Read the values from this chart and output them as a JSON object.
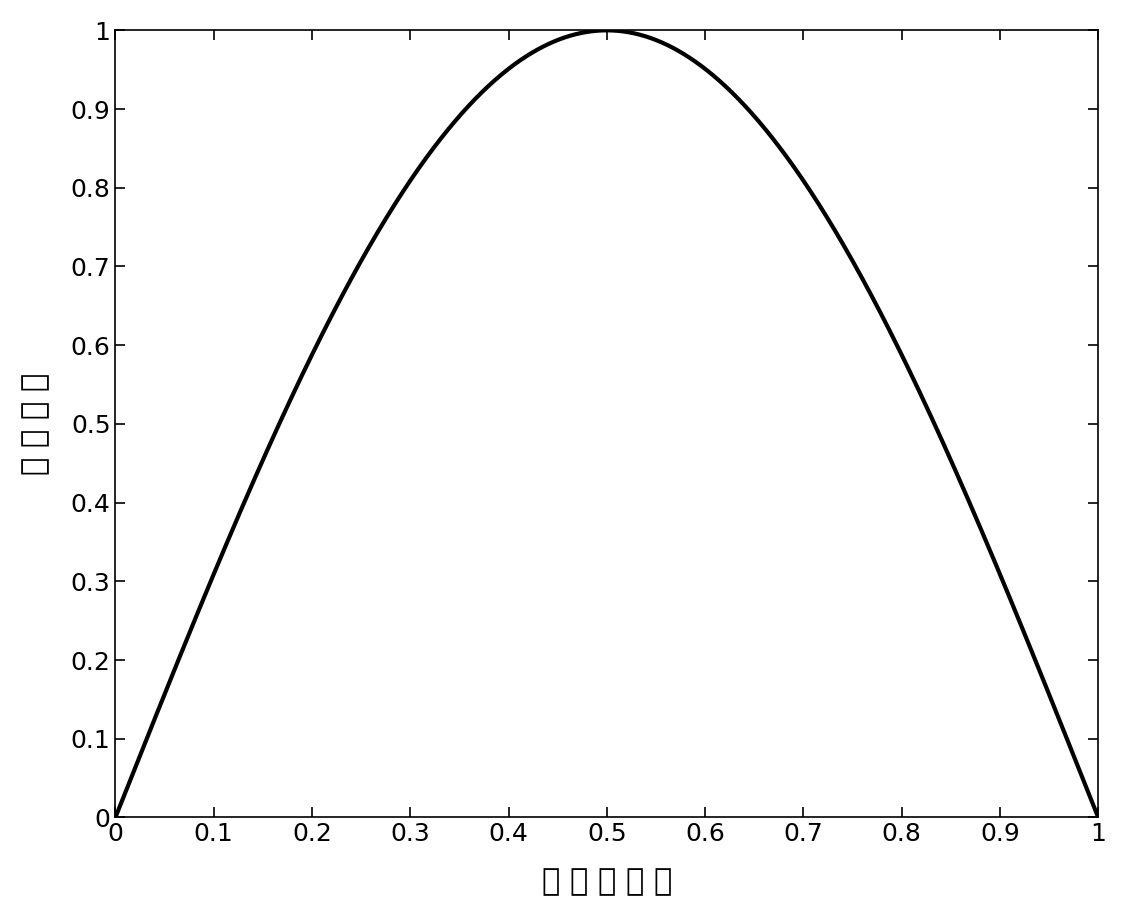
{
  "xlabel": "光格占空比",
  "ylabel": "耦合系数",
  "xlabel_spaced": "光 格 占 空 比",
  "ylabel_spaced": "耦 合 系 数",
  "xlim": [
    0,
    1
  ],
  "ylim": [
    0,
    1
  ],
  "xticks": [
    0,
    0.1,
    0.2,
    0.3,
    0.4,
    0.5,
    0.6,
    0.7,
    0.8,
    0.9,
    1
  ],
  "yticks": [
    0,
    0.1,
    0.2,
    0.3,
    0.4,
    0.5,
    0.6,
    0.7,
    0.8,
    0.9,
    1
  ],
  "line_color": "#000000",
  "line_width": 3.0,
  "background_color": "#ffffff",
  "xlabel_fontsize": 22,
  "ylabel_fontsize": 22,
  "tick_fontsize": 18,
  "tick_direction": "in",
  "top_ticks": true,
  "right_ticks": true,
  "font_family": "SimSun"
}
